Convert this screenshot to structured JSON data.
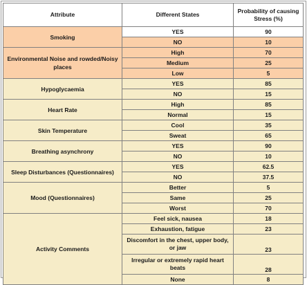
{
  "header": {
    "attribute": "Attribute",
    "states": "Different States",
    "probability": "Probability of causing Stress (%)"
  },
  "colors": {
    "orange": "#fbcfa8",
    "tan": "#f6ecc8",
    "white": "#ffffff",
    "border": "#808080"
  },
  "rows": [
    {
      "attr": "Smoking",
      "states": [
        {
          "state": "YES",
          "prob": "90"
        },
        {
          "state": "NO",
          "prob": "10"
        }
      ]
    },
    {
      "attr": "Environmental Noise and rowded/Noisy places",
      "states": [
        {
          "state": "High",
          "prob": "70"
        },
        {
          "state": "Medium",
          "prob": "25"
        },
        {
          "state": "Low",
          "prob": "5"
        }
      ]
    },
    {
      "attr": "Hypoglycaemia",
      "states": [
        {
          "state": "YES",
          "prob": "85"
        },
        {
          "state": "NO",
          "prob": "15"
        }
      ]
    },
    {
      "attr": "Heart Rate",
      "states": [
        {
          "state": "High",
          "prob": "85"
        },
        {
          "state": "Normal",
          "prob": "15"
        }
      ]
    },
    {
      "attr": "Skin Temperature",
      "states": [
        {
          "state": "Cool",
          "prob": "35"
        },
        {
          "state": "Sweat",
          "prob": "65"
        }
      ]
    },
    {
      "attr": "Breathing asynchrony",
      "states": [
        {
          "state": "YES",
          "prob": "90"
        },
        {
          "state": "NO",
          "prob": "10"
        }
      ]
    },
    {
      "attr": "Sleep Disturbances (Questionnaires)",
      "states": [
        {
          "state": "YES",
          "prob": "62.5"
        },
        {
          "state": "NO",
          "prob": "37.5"
        }
      ]
    },
    {
      "attr": "Mood (Questionnaires)",
      "states": [
        {
          "state": "Better",
          "prob": "5"
        },
        {
          "state": "Same",
          "prob": "25"
        },
        {
          "state": "Worst",
          "prob": "70"
        }
      ]
    },
    {
      "attr": "Activity Comments",
      "states": [
        {
          "state": "Feel sick, nausea",
          "prob": "18"
        },
        {
          "state": "Exhaustion, fatigue",
          "prob": "23"
        },
        {
          "state": "Discomfort in the chest, upper body, or jaw",
          "prob": "23"
        },
        {
          "state": "Irregular or extremely rapid heart beats",
          "prob": "28"
        },
        {
          "state": "None",
          "prob": "8"
        }
      ]
    }
  ]
}
